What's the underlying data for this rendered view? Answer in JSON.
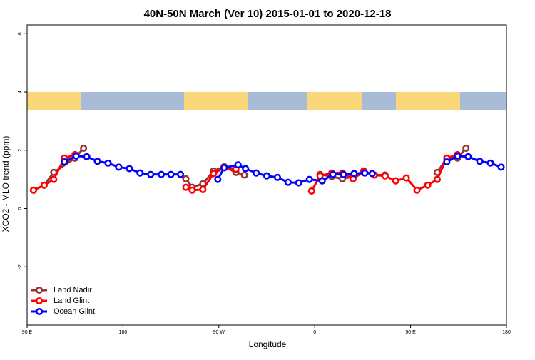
{
  "chart_data": {
    "type": "line",
    "title": "40N-50N March (Ver 10)   2015-01-01 to 2020-12-18",
    "x_label": "Longitude",
    "y_label": "XCO2 - MLO trend (ppm)",
    "xlim": [
      90,
      540
    ],
    "ylim": [
      -4,
      6.3
    ],
    "xticks": [
      {
        "value": 90,
        "label": "90 E"
      },
      180,
      {
        "value": 270,
        "label": "90 W"
      },
      {
        "value": 360,
        "label": "0"
      },
      {
        "value": 450,
        "label": "90 E"
      },
      {
        "value": 540,
        "label": "180"
      }
    ],
    "yticks": [
      -2,
      0,
      2,
      4,
      6
    ],
    "legend": "bottom-left",
    "series": [
      {
        "name": "Land Nadir",
        "color": "#993333",
        "x": [
          96,
          106,
          115,
          135,
          143,
          null,
          239,
          245,
          255,
          265,
          275,
          286,
          294,
          null,
          365,
          376,
          386,
          396,
          406,
          416,
          426,
          null,
          475,
          484,
          494,
          502
        ],
        "values": [
          0.63,
          0.8,
          1.24,
          1.73,
          2.07,
          null,
          1.02,
          0.73,
          0.85,
          1.29,
          1.44,
          1.24,
          1.15,
          null,
          1.17,
          1.1,
          1.02,
          1.1,
          1.29,
          1.15,
          1.15,
          null,
          1.24,
          1.73,
          1.73,
          2.07
        ]
      },
      {
        "name": "Land Glint",
        "color": "#ff0000",
        "x": [
          96,
          106,
          115,
          125,
          135,
          null,
          239,
          245,
          255,
          265,
          275,
          286,
          null,
          357,
          365,
          376,
          386,
          396,
          406,
          416,
          426,
          436,
          446,
          456,
          466,
          475,
          484,
          494
        ],
        "values": [
          0.63,
          0.8,
          1.0,
          1.73,
          1.85,
          null,
          0.73,
          0.63,
          0.65,
          1.2,
          1.4,
          1.35,
          null,
          0.6,
          1.12,
          1.22,
          1.22,
          1.02,
          1.27,
          1.15,
          1.12,
          0.95,
          1.05,
          0.63,
          0.8,
          1.0,
          1.73,
          1.85
        ]
      },
      {
        "name": "Ocean Glint",
        "color": "#0000ff",
        "x": [
          125,
          136,
          146,
          156,
          166,
          176,
          186,
          196,
          206,
          216,
          225,
          234,
          null,
          269,
          275,
          288,
          295,
          305,
          315,
          325,
          335,
          345,
          355,
          367,
          377,
          387,
          397,
          407,
          414,
          null,
          484,
          494,
          504,
          515,
          525,
          535
        ],
        "values": [
          1.6,
          1.8,
          1.78,
          1.62,
          1.56,
          1.42,
          1.37,
          1.22,
          1.17,
          1.17,
          1.17,
          1.17,
          null,
          1.0,
          1.4,
          1.5,
          1.37,
          1.22,
          1.12,
          1.07,
          0.9,
          0.88,
          1.0,
          0.95,
          1.17,
          1.17,
          1.2,
          1.22,
          1.2,
          null,
          1.6,
          1.8,
          1.78,
          1.62,
          1.56,
          1.42
        ]
      }
    ]
  }
}
